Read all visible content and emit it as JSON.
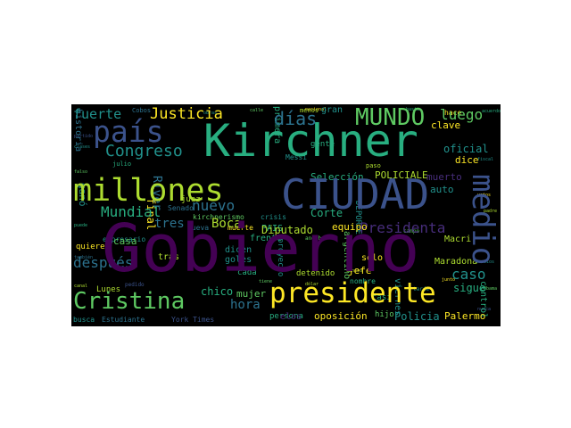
{
  "colors": {
    "background": "#000000",
    "dark_purple": "#440154",
    "purple": "#472d7b",
    "indigo": "#3b528b",
    "blue": "#2c728e",
    "teal": "#21918c",
    "green": "#28ae80",
    "light_green": "#5ec962",
    "yellow_green": "#addc30",
    "yellow": "#fde725"
  },
  "words": {
    "gobierno": "Gobierno",
    "ciudad": "CIUDAD",
    "kirchner": "Kirchner",
    "millones": "millones",
    "presidente": "presidente",
    "cristina": "Cristina",
    "pais": "país",
    "mundo": "MUNDO",
    "medio": "medio",
    "justicia": "Justicia",
    "congreso": "Congreso",
    "fuerte": "fuerte",
    "dias": "días",
    "luego": "luego",
    "nuevo": "nuevo",
    "mundial": "Mundial",
    "tres": "tres",
    "boca": "Boca",
    "presidenta": "Presidenta",
    "despues": "después",
    "caso": "caso",
    "hora": "hora",
    "chico": "chico",
    "mujer": "mujer",
    "casa": "casa",
    "diputado": "Diputado",
    "corte": "Corte",
    "seleccion": "Selección",
    "policiale": "POLICIALE",
    "muerto": "muerto",
    "oficial": "oficial",
    "dice": "dice",
    "auto": "auto",
    "sigue": "sigue",
    "policia": "Policia",
    "palermo": "Palermo",
    "oposicion": "oposición",
    "jefe": "jefe",
    "solo": "sólo",
    "casi": "casi",
    "equipo": "equipo",
    "macri": "Macri",
    "maradona": "Maradona",
    "river": "River",
    "final": "final",
    "gano": "ganó",
    "senado": "Senado",
    "juez": "juez",
    "empresa": "empresa",
    "historia": "historia",
    "hace": "hace",
    "clave": "clave",
    "gran": "gran",
    "menos": "menos",
    "messi": "Messi",
    "primera": "primera",
    "kirchnerismo": "kirchnerismo",
    "crisis": "crisis",
    "muerte": "muerte",
    "gente": "gente",
    "paso": "paso",
    "pais_caps": "PAIS",
    "frente": "frente",
    "dicen": "dicen",
    "goles": "goles",
    "cada": "cada",
    "tras": "tras",
    "detenido": "detenido",
    "proyecto": "proyecto",
    "nombre": "nombre",
    "persona": "persona",
    "lunes": "Lunes",
    "busca": "busca",
    "estudiante": "Estudiante",
    "york_times": "York Times",
    "quiere": "quiere",
    "empresario": "empresario",
    "nueva": "nueva",
    "deporte": "DEPORTE",
    "argentino": "argentino",
    "hijo": "hijo",
    "control": "control",
    "viernes": "viernes",
    "cobos": "Cobos",
    "julio": "julio",
    "anoche": "anoche",
    "centro": "Centro",
    "pedido": "pedido",
    "elos": "elos",
    "campo": "campo",
    "tarde": "tarde",
    "tiene": "tiene",
    "dolar": "dólar",
    "junto": "junto",
    "padre": "padre",
    "obras": "obras",
    "calle": "calle",
    "nacional": "nacional",
    "hasta": "hasta",
    "fiscal": "fiscal",
    "partido": "partido",
    "clases": "clases",
    "falso": "falso",
    "puede": "puede",
    "tambien": "también",
    "canal": "canal",
    "acuerdo": "acuerdo",
    "votos": "votos",
    "precios": "precios",
    "obama": "Obama",
    "nunca": "nunca"
  }
}
